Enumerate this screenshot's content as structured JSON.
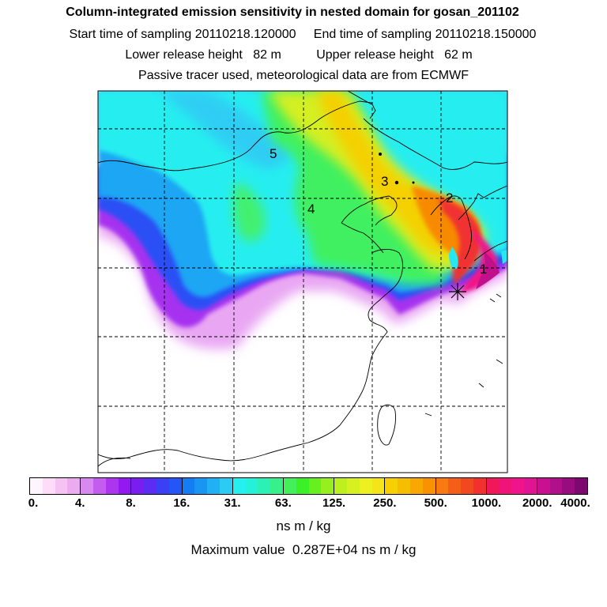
{
  "titles": {
    "line1": "Column-integrated emission sensitivity in nested domain for gosan_201102",
    "line2": "Start time of sampling 20110218.120000     End time of sampling 20110218.150000",
    "line3": "Lower release height   82 m          Upper release height   62 m",
    "line4": "Passive tracer used, meteorological data are from ECMWF"
  },
  "trajectory_labels": [
    "1",
    "2",
    "3",
    "4",
    "5"
  ],
  "colorbar": {
    "tick_labels": [
      "0.",
      "4.",
      "8.",
      "16.",
      "31.",
      "63.",
      "125.",
      "250.",
      "500.",
      "1000.",
      "2000.",
      "4000."
    ],
    "colors": [
      "#fff5fd",
      "#fcdcf8",
      "#f6c2f3",
      "#ecaaf0",
      "#d789f0",
      "#c45cf0",
      "#ad35f0",
      "#9418f0",
      "#7a1ef0",
      "#5c2cf4",
      "#3b3ff6",
      "#2455f6",
      "#167cf4",
      "#1996f4",
      "#22b0f4",
      "#2ccbf4",
      "#25f0f0",
      "#25f0d8",
      "#2cf0b6",
      "#38f08a",
      "#44f05a",
      "#3cf028",
      "#66f020",
      "#96f020",
      "#bef01e",
      "#d7f020",
      "#eef020",
      "#f4e418",
      "#f6d000",
      "#f6be00",
      "#f8a800",
      "#f89200",
      "#f87a10",
      "#f45e18",
      "#f24820",
      "#f2302e",
      "#f01858",
      "#f01478",
      "#f0148c",
      "#e01494",
      "#c81090",
      "#b0108a",
      "#980c80",
      "#7c0870"
    ]
  },
  "units": "ns m / kg",
  "maximum": "Maximum value  0.287E+04 ns m / kg"
}
